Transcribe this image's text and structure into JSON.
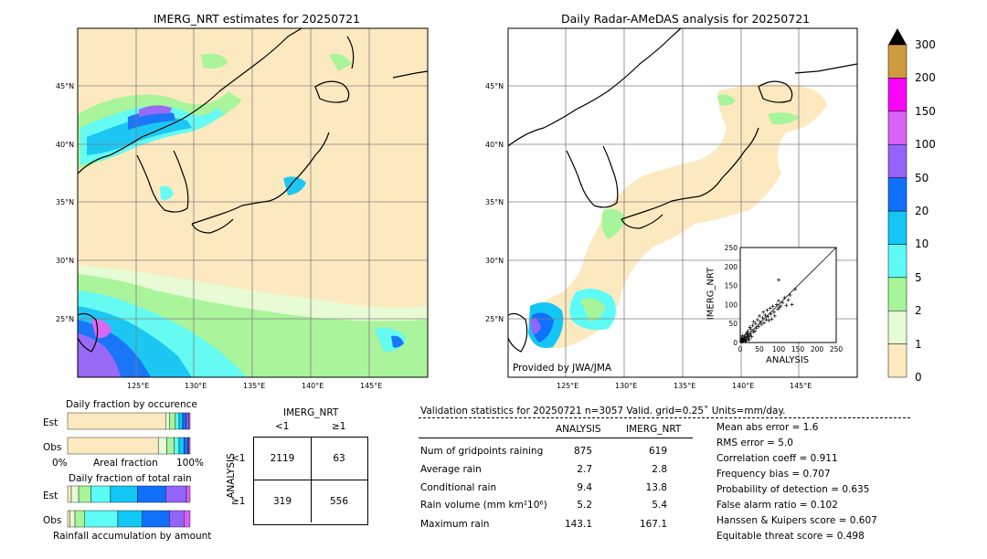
{
  "left_map": {
    "title": "IMERG_NRT estimates for 20250721",
    "lat_labels": [
      "45°N",
      "40°N",
      "35°N",
      "30°N",
      "25°N"
    ],
    "lon_labels": [
      "125°E",
      "130°E",
      "135°E",
      "140°E",
      "145°E"
    ]
  },
  "right_map": {
    "title": "Daily Radar-AMeDAS analysis for 20250721",
    "lat_labels": [
      "45°N",
      "40°N",
      "35°N",
      "30°N",
      "25°N"
    ],
    "lon_labels": [
      "125°E",
      "130°E",
      "135°E",
      "140°E",
      "145°E"
    ],
    "provider": "Provided by JWA/JMA"
  },
  "colorbar": {
    "labels": [
      "0",
      "1",
      "2",
      "5",
      "10",
      "20",
      "50",
      "100",
      "150",
      "200",
      "300"
    ],
    "colors": [
      "#fde9c0",
      "#e6fcd6",
      "#a6f59a",
      "#5dfbf5",
      "#12c6f6",
      "#0f70fa",
      "#9364f9",
      "#d962f6",
      "#fb02f9",
      "#cd9a40"
    ],
    "arrow_color": "#000000"
  },
  "occurrence": {
    "title": "Daily fraction by occurence",
    "rows": [
      "Est",
      "Obs"
    ],
    "xlabel_left": "0%",
    "xlabel_mid": "Areal fraction",
    "xlabel_right": "100%"
  },
  "total_rain": {
    "title": "Daily fraction of total rain",
    "rows": [
      "Est",
      "Obs"
    ],
    "xlabel": "Rainfall accumulation by amount"
  },
  "contingency": {
    "col_title": "IMERG_NRT",
    "col_lt": "<1",
    "col_ge": "≥1",
    "row_title": "ANALYSIS",
    "row_lt": "<1",
    "row_ge": "≥1",
    "cells": [
      "2119",
      "63",
      "319",
      "556"
    ]
  },
  "validation": {
    "header": "Validation statistics for 20250721  n=3057 Valid. grid=0.25˚ Units=mm/day.",
    "col_analysis": "ANALYSIS",
    "col_imerg": "IMERG_NRT",
    "rows": [
      {
        "label": "Num of gridpoints raining",
        "analysis": "875",
        "imerg": "619"
      },
      {
        "label": "Average rain",
        "analysis": "2.7",
        "imerg": "2.8"
      },
      {
        "label": "Conditional rain",
        "analysis": "9.4",
        "imerg": "13.8"
      },
      {
        "label": "Rain volume (mm km²10⁶)",
        "analysis": "5.2",
        "imerg": "5.4"
      },
      {
        "label": "Maximum rain",
        "analysis": "143.1",
        "imerg": "167.1"
      }
    ],
    "scores": [
      "Mean abs error =    1.6",
      "RMS error =    5.0",
      "Correlation coeff =  0.911",
      "Frequency bias =  0.707",
      "Probability of detection =  0.635",
      "False alarm ratio =  0.102",
      "Hanssen & Kuipers score =  0.607",
      "Equitable threat score =  0.498"
    ]
  },
  "chart_data": [
    {
      "type": "scatter",
      "title": "",
      "xlabel": "ANALYSIS",
      "ylabel": "IMERG_NRT",
      "xlim": [
        0,
        250
      ],
      "ylim": [
        0,
        250
      ],
      "xticks": [
        "0",
        "50",
        "100",
        "150",
        "200",
        "250"
      ],
      "yticks": [
        "0",
        "50",
        "100",
        "150",
        "200",
        "250"
      ],
      "points": [
        [
          2,
          3
        ],
        [
          4,
          6
        ],
        [
          5,
          2
        ],
        [
          7,
          10
        ],
        [
          8,
          4
        ],
        [
          10,
          12
        ],
        [
          12,
          8
        ],
        [
          14,
          20
        ],
        [
          15,
          5
        ],
        [
          17,
          25
        ],
        [
          18,
          14
        ],
        [
          20,
          30
        ],
        [
          22,
          10
        ],
        [
          24,
          18
        ],
        [
          25,
          40
        ],
        [
          27,
          22
        ],
        [
          28,
          35
        ],
        [
          30,
          15
        ],
        [
          32,
          45
        ],
        [
          34,
          28
        ],
        [
          35,
          55
        ],
        [
          38,
          30
        ],
        [
          40,
          50
        ],
        [
          42,
          38
        ],
        [
          45,
          60
        ],
        [
          48,
          42
        ],
        [
          50,
          70
        ],
        [
          52,
          55
        ],
        [
          55,
          48
        ],
        [
          58,
          65
        ],
        [
          60,
          80
        ],
        [
          62,
          52
        ],
        [
          65,
          72
        ],
        [
          68,
          60
        ],
        [
          70,
          85
        ],
        [
          72,
          68
        ],
        [
          75,
          58
        ],
        [
          78,
          90
        ],
        [
          80,
          75
        ],
        [
          82,
          62
        ],
        [
          85,
          95
        ],
        [
          88,
          80
        ],
        [
          90,
          70
        ],
        [
          95,
          100
        ],
        [
          98,
          88
        ],
        [
          100,
          110
        ],
        [
          102,
          92
        ],
        [
          105,
          96
        ],
        [
          110,
          105
        ],
        [
          115,
          118
        ],
        [
          120,
          98
        ],
        [
          125,
          112
        ],
        [
          130,
          125
        ],
        [
          135,
          100
        ],
        [
          143,
          140
        ],
        [
          100,
          165
        ],
        [
          5,
          8
        ],
        [
          3,
          12
        ],
        [
          6,
          18
        ],
        [
          9,
          6
        ],
        [
          11,
          15
        ],
        [
          13,
          3
        ],
        [
          16,
          9
        ],
        [
          19,
          24
        ],
        [
          21,
          16
        ],
        [
          23,
          7
        ]
      ]
    },
    {
      "type": "bar",
      "title": "Daily fraction by occurence",
      "categories": [
        "Est",
        "Obs"
      ],
      "series": [
        {
          "values": [
            0.8,
            0.74
          ]
        },
        {
          "values": [
            0.03,
            0.07
          ]
        },
        {
          "values": [
            0.05,
            0.06
          ]
        },
        {
          "values": [
            0.03,
            0.04
          ]
        },
        {
          "values": [
            0.03,
            0.04
          ]
        },
        {
          "values": [
            0.03,
            0.03
          ]
        },
        {
          "values": [
            0.02,
            0.01
          ]
        },
        {
          "values": [
            0.01,
            0.01
          ]
        }
      ]
    },
    {
      "type": "bar",
      "title": "Daily fraction of total rain",
      "categories": [
        "Est",
        "Obs"
      ],
      "series": [
        {
          "values": [
            0.03,
            0.02
          ]
        },
        {
          "values": [
            0.06,
            0.04
          ]
        },
        {
          "values": [
            0.1,
            0.08
          ]
        },
        {
          "values": [
            0.16,
            0.27
          ]
        },
        {
          "values": [
            0.22,
            0.2
          ]
        },
        {
          "values": [
            0.23,
            0.22
          ]
        },
        {
          "values": [
            0.17,
            0.12
          ]
        },
        {
          "values": [
            0.03,
            0.05
          ]
        }
      ]
    }
  ]
}
